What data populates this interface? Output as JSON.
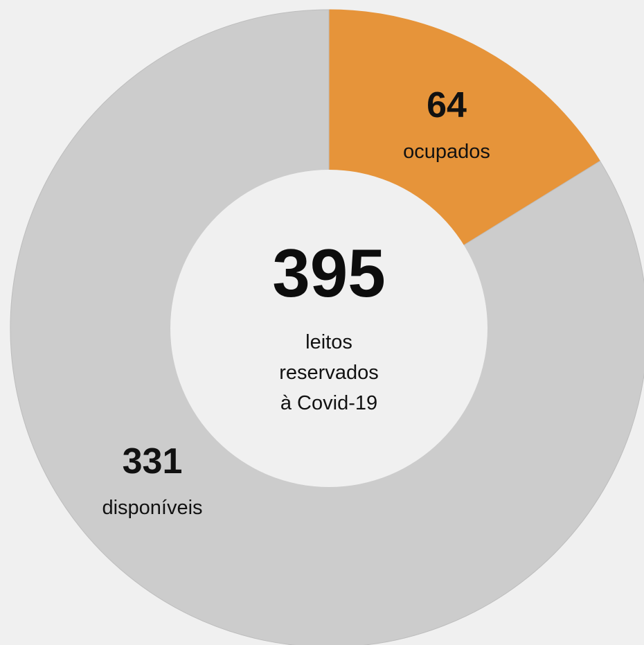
{
  "chart_data": {
    "type": "pie",
    "donut": true,
    "center": {
      "total": "395",
      "caption_lines": [
        "leitos",
        "reservados",
        "à Covid-19"
      ]
    },
    "slices": [
      {
        "label": "ocupados",
        "value": 64,
        "display": "64",
        "color": "#e6943a"
      },
      {
        "label": "disponíveis",
        "value": 331,
        "display": "331",
        "color": "#cccccc"
      }
    ],
    "hole_color": "#f0f0f0",
    "start_angle": "12 o'clock",
    "direction": "clockwise"
  }
}
